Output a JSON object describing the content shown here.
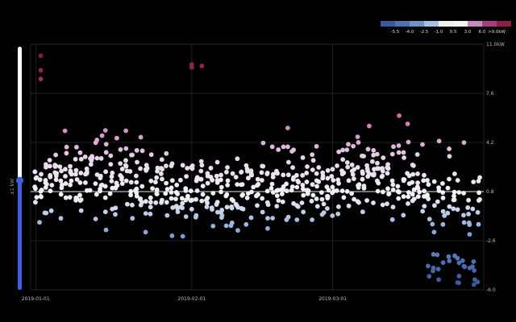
{
  "chart_data": {
    "type": "scatter",
    "title": "",
    "xlabel": "",
    "ylabel": "±1 kW",
    "x_ticks": [
      "2019-01-01",
      "2019-02-01",
      "2019-03-01"
    ],
    "x_range": [
      "2018-12-31",
      "2019-03-31"
    ],
    "y_ticks": [
      -6.0,
      -2.6,
      0.8,
      4.2,
      7.6,
      11.0
    ],
    "y_tick_labels": [
      "-6.0",
      "-2.6",
      "0.8",
      "4.2",
      "7.6",
      "11.0kW"
    ],
    "ylim": [
      -6.0,
      11.0
    ],
    "grid": true,
    "reference_line": 0.8,
    "legend": {
      "position": "top-right",
      "labels": [
        "-5.5",
        "-4.0",
        "-2.5",
        "-1.0",
        "0.5",
        "3.0",
        "6.0",
        ">9.0kW"
      ],
      "colors": [
        "#3a5a9c",
        "#4d72b3",
        "#6f93c9",
        "#a9bfe0",
        "#eeeeee",
        "#f2f2f2",
        "#c58bc0",
        "#a83f7c",
        "#8b1f4a"
      ]
    },
    "point_count_approx": 600,
    "notable_points": [
      {
        "date": "2019-01-02",
        "values": [
          10.2,
          9.2,
          8.6
        ]
      },
      {
        "date": "2019-02-01",
        "values": [
          9.6,
          9.4
        ]
      },
      {
        "date": "2019-02-03",
        "values": [
          9.5
        ]
      }
    ]
  },
  "slider": {
    "label": "±1 kW",
    "value_fraction": 0.45,
    "track_color": "#ffffff",
    "fill_color": "#3f5fe0"
  }
}
